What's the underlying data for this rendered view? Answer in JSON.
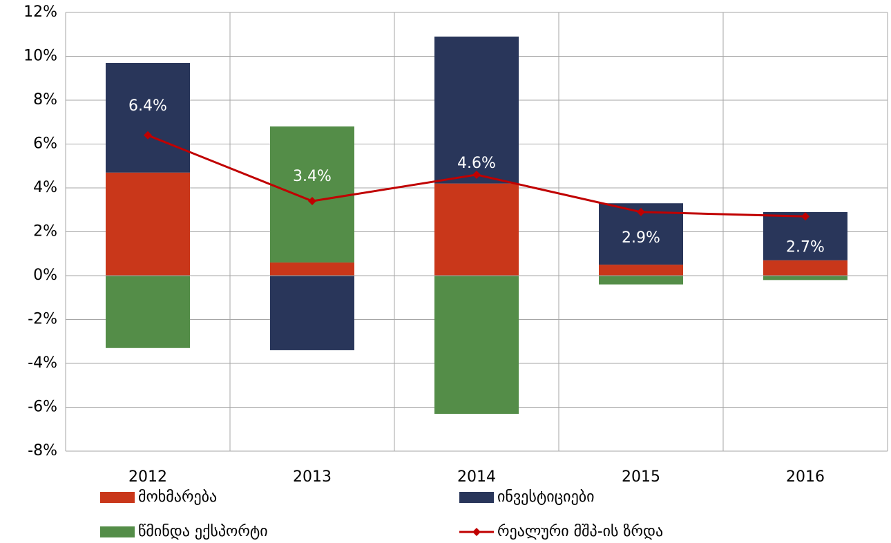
{
  "chart_data": {
    "type": "stacked-bar-line",
    "categories": [
      "2012",
      "2013",
      "2014",
      "2015",
      "2016"
    ],
    "series": [
      {
        "name": "მოხმარება",
        "color": "#c9371a",
        "type": "bar",
        "values": [
          4.7,
          0.6,
          4.2,
          0.5,
          0.7
        ]
      },
      {
        "name": "ინვესტიციები",
        "color": "#29365a",
        "type": "bar",
        "values": [
          5.0,
          -3.4,
          6.7,
          2.8,
          2.2
        ]
      },
      {
        "name": "წმინდა ექსპორტი",
        "color": "#548d48",
        "type": "bar",
        "values": [
          -3.3,
          6.2,
          -6.3,
          -0.4,
          -0.2
        ]
      },
      {
        "name": "რეალური მშპ-ის ზრდა",
        "color": "#c00000",
        "type": "line",
        "values": [
          6.4,
          3.4,
          4.6,
          2.9,
          2.7
        ],
        "value_labels": [
          "6.4%",
          "3.4%",
          "4.6%",
          "2.9%",
          "2.7%"
        ]
      }
    ],
    "ylim": [
      -8,
      12
    ],
    "yticks": [
      {
        "value": -8,
        "label": "-8%"
      },
      {
        "value": -6,
        "label": "-6%"
      },
      {
        "value": -4,
        "label": "-4%"
      },
      {
        "value": -2,
        "label": "-2%"
      },
      {
        "value": 0,
        "label": "0%"
      },
      {
        "value": 2,
        "label": "2%"
      },
      {
        "value": 4,
        "label": "4%"
      },
      {
        "value": 6,
        "label": "6%"
      },
      {
        "value": 8,
        "label": "8%"
      },
      {
        "value": 10,
        "label": "10%"
      },
      {
        "value": 12,
        "label": "12%"
      }
    ],
    "grid": true,
    "legend": "bottom"
  }
}
